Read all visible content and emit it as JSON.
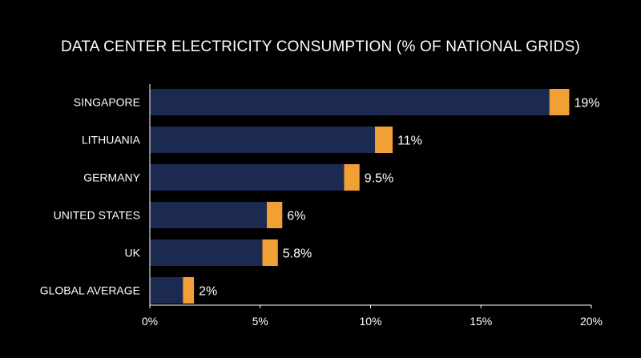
{
  "chart_data": {
    "type": "bar",
    "orientation": "horizontal",
    "stacked": true,
    "title": "DATA CENTER ELECTRICITY CONSUMPTION (% OF NATIONAL GRIDS)",
    "categories": [
      "SINGAPORE",
      "LITHUANIA",
      "GERMANY",
      "UNITED STATES",
      "UK",
      "GLOBAL AVERAGE"
    ],
    "values": [
      19,
      11,
      9.5,
      6,
      5.8,
      2
    ],
    "value_labels": [
      "19%",
      "11%",
      "9.5%",
      "6%",
      "5.8%",
      "2%"
    ],
    "segments": [
      {
        "values": [
          18.1,
          10.2,
          8.8,
          5.3,
          5.1,
          1.5
        ],
        "color": "#1c2a52"
      },
      {
        "values": [
          0.9,
          0.8,
          0.7,
          0.7,
          0.7,
          0.5
        ],
        "color": "#f0a034"
      }
    ],
    "xlim": [
      0,
      20
    ],
    "xticks": [
      0,
      5,
      10,
      15,
      20
    ],
    "xtick_labels": [
      "0%",
      "5%",
      "10%",
      "15%",
      "20%"
    ],
    "xlabel": "",
    "ylabel": "",
    "grid": false,
    "legend": "none"
  },
  "colors": {
    "background": "#000000",
    "bar_main": "#1c2a52",
    "bar_tip": "#f0a034",
    "text": "#ffffff",
    "axis": "#ffffff"
  }
}
